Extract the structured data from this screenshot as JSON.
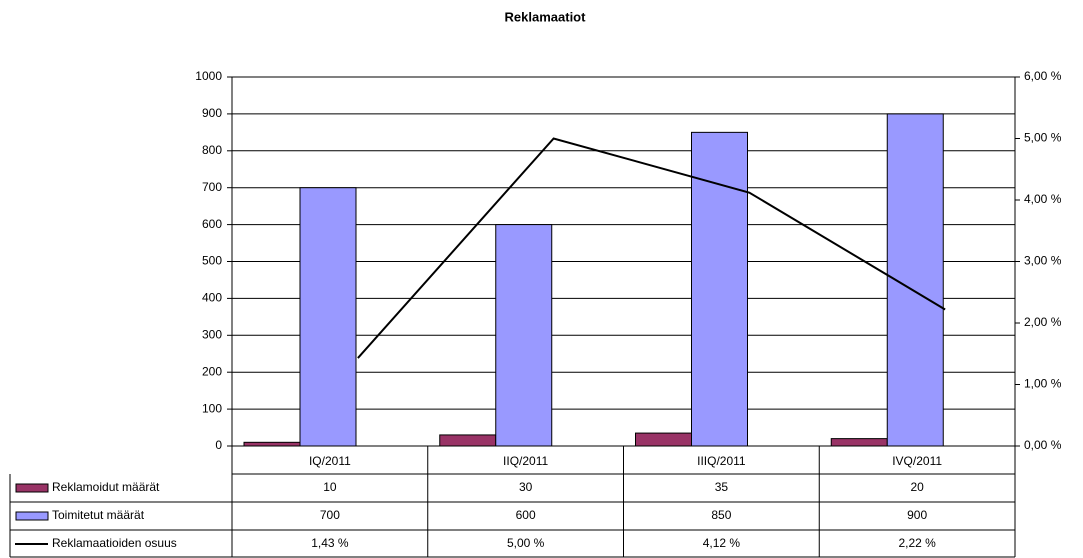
{
  "chart_data": {
    "type": "bar",
    "title": "Reklamaatiot",
    "categories": [
      "IQ/2011",
      "IIQ/2011",
      "IIIQ/2011",
      "IVQ/2011"
    ],
    "series": [
      {
        "name": "Reklamoidut määrät",
        "type": "bar",
        "color": "#993366",
        "values": [
          10,
          30,
          35,
          20
        ]
      },
      {
        "name": "Toimitetut määrät",
        "type": "bar",
        "color": "#9999ff",
        "values": [
          700,
          600,
          850,
          900
        ]
      },
      {
        "name": "Reklamaatioiden osuus",
        "type": "line",
        "axis": "y2",
        "color": "#000000",
        "values": [
          1.43,
          5.0,
          4.12,
          2.22
        ],
        "value_labels": [
          "1,43 %",
          "5,00 %",
          "4,12 %",
          "2,22 %"
        ]
      }
    ],
    "ylim": [
      0,
      1000
    ],
    "yticks": [
      0,
      100,
      200,
      300,
      400,
      500,
      600,
      700,
      800,
      900,
      1000
    ],
    "y2lim": [
      0,
      6
    ],
    "y2ticks": [
      {
        "value": 0,
        "label": "0,00 %"
      },
      {
        "value": 1,
        "label": "1,00 %"
      },
      {
        "value": 2,
        "label": "2,00 %"
      },
      {
        "value": 3,
        "label": "3,00 %"
      },
      {
        "value": 4,
        "label": "4,00 %"
      },
      {
        "value": 5,
        "label": "5,00 %"
      },
      {
        "value": 6,
        "label": "6,00 %"
      }
    ],
    "grid": true,
    "data_table": true
  }
}
